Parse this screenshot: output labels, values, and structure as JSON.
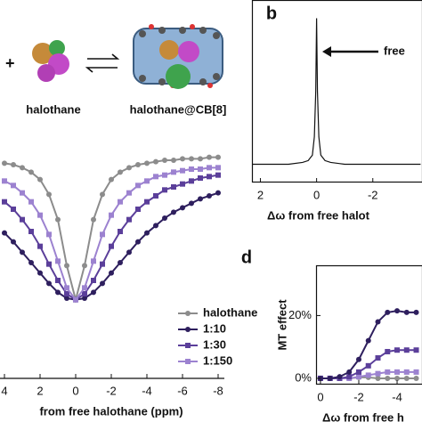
{
  "scheme": {
    "plus": "+",
    "guest": "halothane",
    "complex": "halothane@CB[8]"
  },
  "chart_data": [
    {
      "type": "line",
      "x_label": "from free halothane (ppm)",
      "x": [
        4,
        3.5,
        3,
        2.5,
        2,
        1.5,
        1,
        0.5,
        0,
        -0.5,
        -1,
        -1.5,
        -2,
        -2.5,
        -3,
        -3.5,
        -4,
        -4.5,
        -5,
        -5.5,
        -6,
        -6.5,
        -7,
        -7.5,
        -8
      ],
      "xlim": [
        4.25,
        -8.35
      ],
      "xticks": [
        4,
        2,
        0,
        -2,
        -4,
        -6,
        -8
      ],
      "ylim": [
        -0.53,
        1.06
      ],
      "legend": "lower right",
      "series": [
        {
          "name": "halothane",
          "color": "#8c8c8c",
          "marker": "circle",
          "values": [
            0.92,
            0.91,
            0.89,
            0.86,
            0.81,
            0.71,
            0.54,
            0.23,
            0,
            0.23,
            0.54,
            0.71,
            0.81,
            0.86,
            0.89,
            0.91,
            0.92,
            0.93,
            0.94,
            0.94,
            0.95,
            0.95,
            0.95,
            0.96,
            0.96
          ]
        },
        {
          "name": "1:10",
          "color": "#2e1f5e",
          "marker": "circle",
          "values": [
            0.45,
            0.39,
            0.32,
            0.25,
            0.18,
            0.11,
            0.05,
            0.01,
            0,
            0.01,
            0.05,
            0.11,
            0.18,
            0.25,
            0.32,
            0.39,
            0.45,
            0.5,
            0.55,
            0.59,
            0.62,
            0.65,
            0.68,
            0.7,
            0.72
          ]
        },
        {
          "name": "1:30",
          "color": "#5b3f9a",
          "marker": "square",
          "values": [
            0.66,
            0.61,
            0.54,
            0.46,
            0.36,
            0.24,
            0.13,
            0.04,
            0,
            0.04,
            0.13,
            0.24,
            0.36,
            0.46,
            0.54,
            0.61,
            0.66,
            0.7,
            0.74,
            0.76,
            0.78,
            0.8,
            0.82,
            0.83,
            0.84
          ]
        },
        {
          "name": "1:150",
          "color": "#9c82d0",
          "marker": "square",
          "values": [
            0.8,
            0.77,
            0.72,
            0.66,
            0.57,
            0.44,
            0.26,
            0.08,
            0,
            0.08,
            0.26,
            0.44,
            0.57,
            0.66,
            0.72,
            0.77,
            0.8,
            0.83,
            0.84,
            0.86,
            0.87,
            0.88,
            0.88,
            0.89,
            0.89
          ]
        }
      ]
    },
    {
      "type": "line",
      "panel_label": "b",
      "annotation": "free",
      "x_label": "Δω from free halot",
      "x": [
        2.3,
        1.5,
        1,
        0.5,
        0.3,
        0.15,
        0.08,
        0.03,
        0,
        -0.03,
        -0.08,
        -0.15,
        -0.3,
        -0.5,
        -1,
        -2,
        -3.7
      ],
      "xlim": [
        2.3,
        -3.75
      ],
      "xticks": [
        2,
        0,
        -2
      ],
      "ylim": [
        0,
        1
      ],
      "series": [
        {
          "color": "#111111",
          "values": [
            0.1,
            0.1,
            0.1,
            0.11,
            0.12,
            0.15,
            0.25,
            0.5,
            0.9,
            0.5,
            0.25,
            0.15,
            0.12,
            0.11,
            0.1,
            0.1,
            0.1
          ]
        }
      ]
    },
    {
      "type": "line",
      "panel_label": "d",
      "x_label": "Δω from free h",
      "y_label": "MT effect",
      "x": [
        0,
        -0.5,
        -1,
        -1.5,
        -2,
        -2.5,
        -3,
        -3.5,
        -4,
        -4.5,
        -5
      ],
      "xlim": [
        0.23,
        -5.3
      ],
      "xticks": [
        0,
        -2,
        -4
      ],
      "ylim": [
        -2,
        36
      ],
      "yticks": [
        {
          "value": 0,
          "label": "0%"
        },
        {
          "value": 20,
          "label": "20%"
        }
      ],
      "series": [
        {
          "color": "#8c8c8c",
          "marker": "circle",
          "values": [
            0,
            0,
            0,
            0,
            0.3,
            0.3,
            0,
            0,
            0,
            0,
            0
          ]
        },
        {
          "color": "#9c82d0",
          "marker": "square",
          "values": [
            0,
            0,
            0,
            0,
            0.5,
            1,
            1.5,
            2,
            2,
            2,
            2
          ]
        },
        {
          "color": "#5b3f9a",
          "marker": "square",
          "values": [
            0,
            0,
            0,
            0.5,
            2,
            4,
            6.5,
            8.5,
            9,
            9,
            9
          ]
        },
        {
          "color": "#2e1f5e",
          "marker": "circle",
          "values": [
            0,
            0,
            0.5,
            2,
            6,
            12,
            18,
            21,
            21.5,
            21,
            21
          ]
        }
      ]
    }
  ]
}
